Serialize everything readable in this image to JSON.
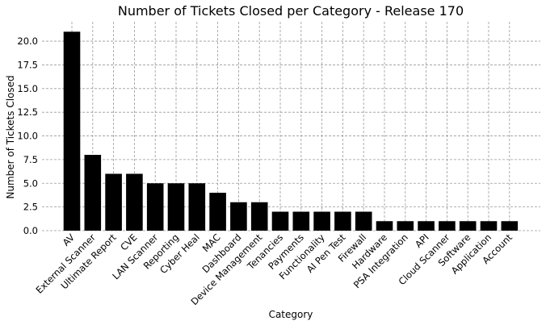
{
  "chart_data": {
    "type": "bar",
    "title": "Number of Tickets Closed per Category - Release 170",
    "xlabel": "Category",
    "ylabel": "Number of Tickets Closed",
    "categories": [
      "AV",
      "External Scanner",
      "Ultimate Report",
      "CVE",
      "LAN Scanner",
      "Reporting",
      "Cyber Heal",
      "MAC",
      "Dashboard",
      "Device Management",
      "Tenancies",
      "Payments",
      "Functionality",
      "AI Pen Test",
      "Firewall",
      "Hardware",
      "PSA Integration",
      "API",
      "Cloud Scanner",
      "Software",
      "Application",
      "Account"
    ],
    "values": [
      21,
      8,
      6,
      6,
      5,
      5,
      5,
      4,
      3,
      3,
      2,
      2,
      2,
      2,
      2,
      1,
      1,
      1,
      1,
      1,
      1,
      1
    ],
    "ylim": [
      0,
      22.05
    ],
    "yticks": [
      "0.0",
      "2.5",
      "5.0",
      "7.5",
      "10.0",
      "12.5",
      "15.0",
      "17.5",
      "20.0"
    ],
    "grid": true,
    "bar_color": "#000000"
  }
}
